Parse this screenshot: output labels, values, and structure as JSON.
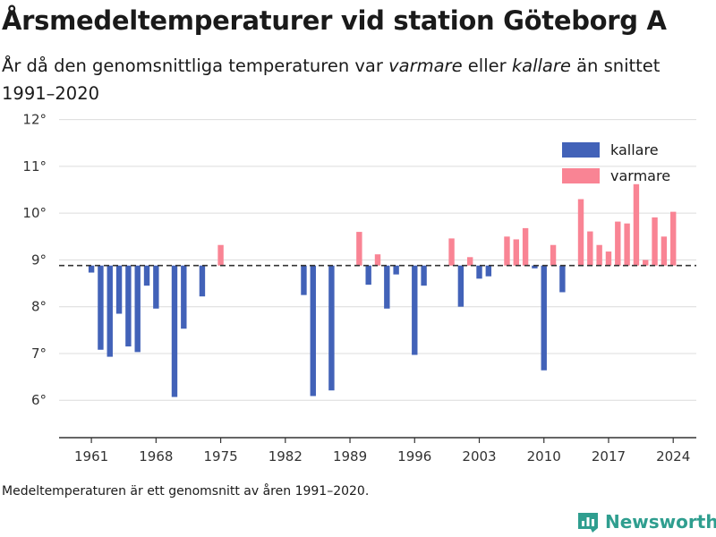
{
  "title": "Årsmedeltemperaturer vid station Göteborg A",
  "subtitle": {
    "part1": "År då den genomsnittliga temperaturen var ",
    "em1": "varmare",
    "part2": " eller ",
    "em2": "kallare",
    "part3": " än snittet 1991–2020"
  },
  "footnote": "Medeltemperaturen är ett genomsnitt av åren 1991–2020.",
  "brand": {
    "name": "Newsworthy",
    "icon": "newsworthy-logo-icon",
    "color": "#2f9e8f"
  },
  "chart_data": {
    "type": "bar",
    "baseline": 8.88,
    "baseline_style": "dashed",
    "ylim": [
      5.2,
      12.3
    ],
    "xlim": [
      1957.5,
      2026.5
    ],
    "yticks": [
      6,
      7,
      8,
      9,
      10,
      11,
      12
    ],
    "ytick_labels": [
      "6°",
      "7°",
      "8°",
      "9°",
      "10°",
      "11°",
      "12°"
    ],
    "xticks": [
      1961,
      1968,
      1975,
      1982,
      1989,
      1996,
      2003,
      2010,
      2017,
      2024
    ],
    "xtick_labels": [
      "1961",
      "1968",
      "1975",
      "1982",
      "1989",
      "1996",
      "2003",
      "2010",
      "2017",
      "2024"
    ],
    "grid": "horizontal",
    "legend_position": "top-right",
    "colors": {
      "kallare": "#4262b8",
      "varmare": "#f98494"
    },
    "legend": [
      {
        "key": "kallare",
        "label": "kallare"
      },
      {
        "key": "varmare",
        "label": "varmare"
      }
    ],
    "years": [
      1961,
      1962,
      1963,
      1964,
      1965,
      1966,
      1967,
      1968,
      1970,
      1971,
      1973,
      1975,
      1984,
      1985,
      1987,
      1990,
      1991,
      1992,
      1993,
      1994,
      1996,
      1997,
      2000,
      2001,
      2002,
      2003,
      2004,
      2006,
      2007,
      2008,
      2009,
      2010,
      2011,
      2012,
      2014,
      2015,
      2016,
      2017,
      2018,
      2019,
      2020,
      2021,
      2022,
      2023,
      2024
    ],
    "values": [
      8.73,
      7.08,
      6.93,
      7.85,
      7.15,
      7.03,
      8.45,
      7.96,
      6.07,
      7.53,
      8.22,
      9.32,
      8.25,
      6.09,
      6.21,
      9.6,
      8.47,
      9.12,
      7.96,
      8.69,
      6.97,
      8.45,
      9.46,
      8.0,
      9.06,
      8.6,
      8.65,
      9.5,
      9.44,
      9.68,
      8.82,
      6.64,
      9.32,
      8.31,
      10.3,
      9.61,
      9.32,
      9.18,
      9.82,
      9.78,
      10.62,
      9.0,
      9.91,
      9.5,
      10.03
    ]
  }
}
